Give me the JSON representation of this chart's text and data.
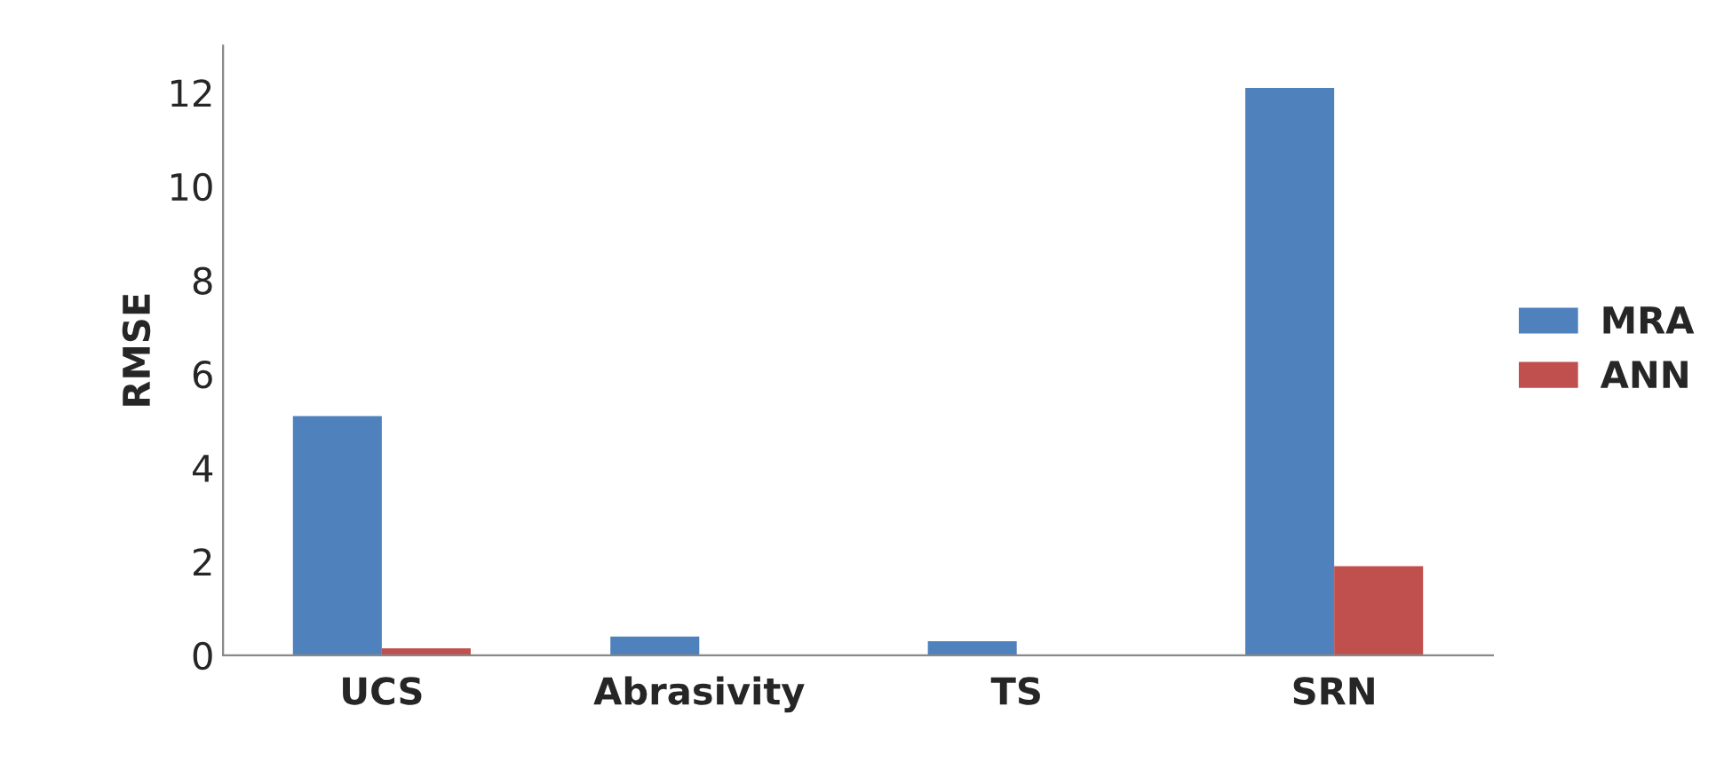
{
  "chart_data": {
    "type": "bar",
    "ylabel": "RMSE",
    "categories": [
      "UCS",
      "Abrasivity",
      "TS",
      "SRN"
    ],
    "series": [
      {
        "name": "MRA",
        "color": "#4f81bd",
        "values": [
          5.1,
          0.4,
          0.3,
          12.1
        ]
      },
      {
        "name": "ANN",
        "color": "#c0504d",
        "values": [
          0.15,
          null,
          null,
          1.9
        ]
      }
    ],
    "ylim": [
      0,
      13
    ],
    "yticks": [
      0,
      2,
      4,
      6,
      8,
      10,
      12
    ],
    "grid": false,
    "legend": "right"
  }
}
